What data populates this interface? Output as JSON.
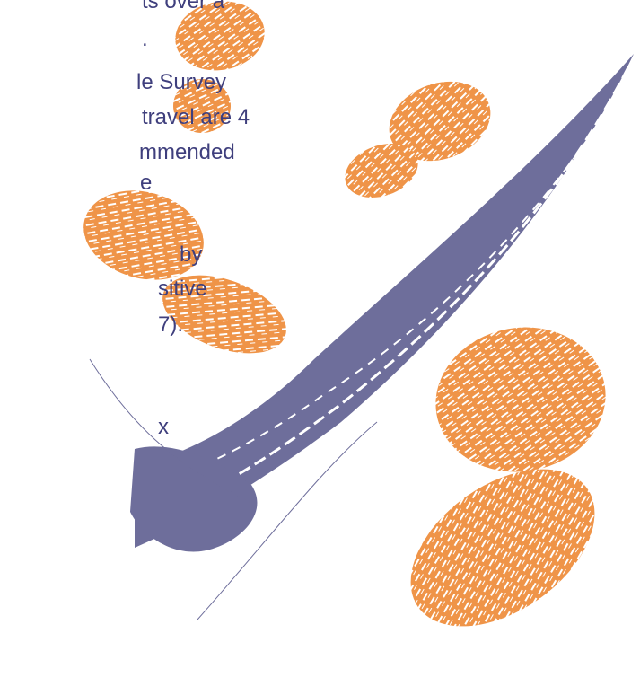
{
  "text_lines": [
    "ts over a",
    ".",
    "le Survey",
    "travel are 4",
    "mmended",
    "e",
    "by",
    "sitive",
    "7).",
    "x"
  ]
}
